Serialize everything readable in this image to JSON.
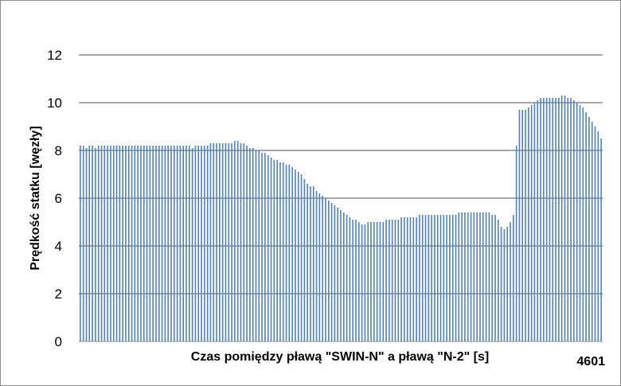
{
  "chart_data": {
    "type": "bar",
    "title": "",
    "xlabel": "Czas pomiędzy pławą \"SWIN-N\" a pławą \"N-2\" [s]",
    "ylabel": "Prędkość statku [węzły]",
    "ylim": [
      0,
      12
    ],
    "yticks": [
      "0",
      "2",
      "4",
      "6",
      "8",
      "10",
      "12"
    ],
    "x_tick_label": "4601",
    "grid": true,
    "bar_color": "#4f81bd",
    "values": [
      8.2,
      8.2,
      8.1,
      8.2,
      8.2,
      8.1,
      8.2,
      8.2,
      8.2,
      8.2,
      8.2,
      8.2,
      8.2,
      8.2,
      8.2,
      8.2,
      8.2,
      8.2,
      8.2,
      8.2,
      8.2,
      8.2,
      8.2,
      8.2,
      8.2,
      8.2,
      8.2,
      8.2,
      8.2,
      8.2,
      8.2,
      8.2,
      8.2,
      8.2,
      8.2,
      8.2,
      8.2,
      8.1,
      8.2,
      8.2,
      8.2,
      8.2,
      8.2,
      8.3,
      8.3,
      8.3,
      8.3,
      8.3,
      8.3,
      8.3,
      8.3,
      8.4,
      8.4,
      8.3,
      8.3,
      8.2,
      8.1,
      8.1,
      8.0,
      8.0,
      7.9,
      7.9,
      7.8,
      7.7,
      7.6,
      7.6,
      7.5,
      7.5,
      7.4,
      7.4,
      7.3,
      7.2,
      7.1,
      7.0,
      6.8,
      6.6,
      6.5,
      6.5,
      6.3,
      6.2,
      6.1,
      6.0,
      5.9,
      5.8,
      5.7,
      5.6,
      5.5,
      5.4,
      5.3,
      5.2,
      5.1,
      5.1,
      5.0,
      4.9,
      4.9,
      5.0,
      5.0,
      5.0,
      5.0,
      5.0,
      5.0,
      5.1,
      5.1,
      5.1,
      5.1,
      5.1,
      5.2,
      5.2,
      5.2,
      5.2,
      5.2,
      5.2,
      5.3,
      5.3,
      5.3,
      5.3,
      5.3,
      5.3,
      5.3,
      5.3,
      5.3,
      5.3,
      5.3,
      5.3,
      5.3,
      5.4,
      5.4,
      5.4,
      5.4,
      5.4,
      5.4,
      5.4,
      5.4,
      5.4,
      5.4,
      5.4,
      5.3,
      5.3,
      5.1,
      4.8,
      4.7,
      4.8,
      5.0,
      5.3,
      8.2,
      9.7,
      9.7,
      9.7,
      9.8,
      9.9,
      10.0,
      10.1,
      10.2,
      10.2,
      10.2,
      10.2,
      10.2,
      10.2,
      10.2,
      10.3,
      10.3,
      10.2,
      10.2,
      10.1,
      10.0,
      9.9,
      9.8,
      9.6,
      9.4,
      9.2,
      9.0,
      8.8,
      8.5
    ]
  }
}
